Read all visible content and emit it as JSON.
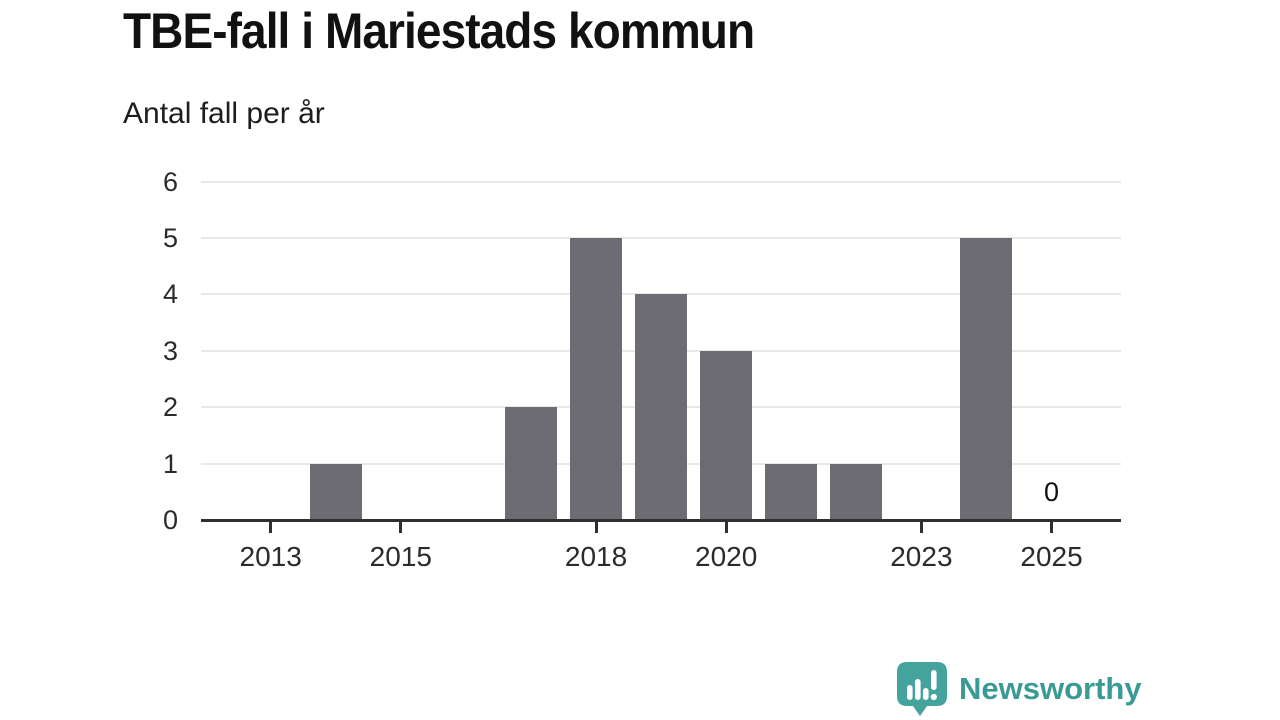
{
  "header": {
    "title": "TBE-fall i Mariestads kommun",
    "subtitle": "Antal fall per år"
  },
  "chart_data": {
    "type": "bar",
    "title": "TBE-fall i Mariestads kommun",
    "subtitle": "Antal fall per år",
    "categories": [
      "2013",
      "2014",
      "2015",
      "2016",
      "2017",
      "2018",
      "2019",
      "2020",
      "2021",
      "2022",
      "2023",
      "2024",
      "2025"
    ],
    "values": [
      0,
      1,
      0,
      0,
      2,
      5,
      4,
      3,
      1,
      1,
      0,
      5,
      0
    ],
    "xlabel": "",
    "ylabel": "Antal fall per år",
    "ylim": [
      0,
      6
    ],
    "yticks": [
      0,
      1,
      2,
      3,
      4,
      5,
      6
    ],
    "xtick_labels": [
      "2013",
      "2015",
      "2018",
      "2020",
      "2023",
      "2025"
    ],
    "grid": true,
    "legend": "none",
    "bar_color": "#6d6c72",
    "axis_color": "#2f2f2f",
    "gridline_color": "#e8e8e8",
    "annotations": [
      {
        "category": "2025",
        "text": "0"
      }
    ]
  },
  "footer": {
    "brand": "Newsworthy",
    "brand_color": "#3a9a94",
    "icon_color": "#45a39d",
    "icon_name": "bar-chart-speech-bubble-icon"
  }
}
